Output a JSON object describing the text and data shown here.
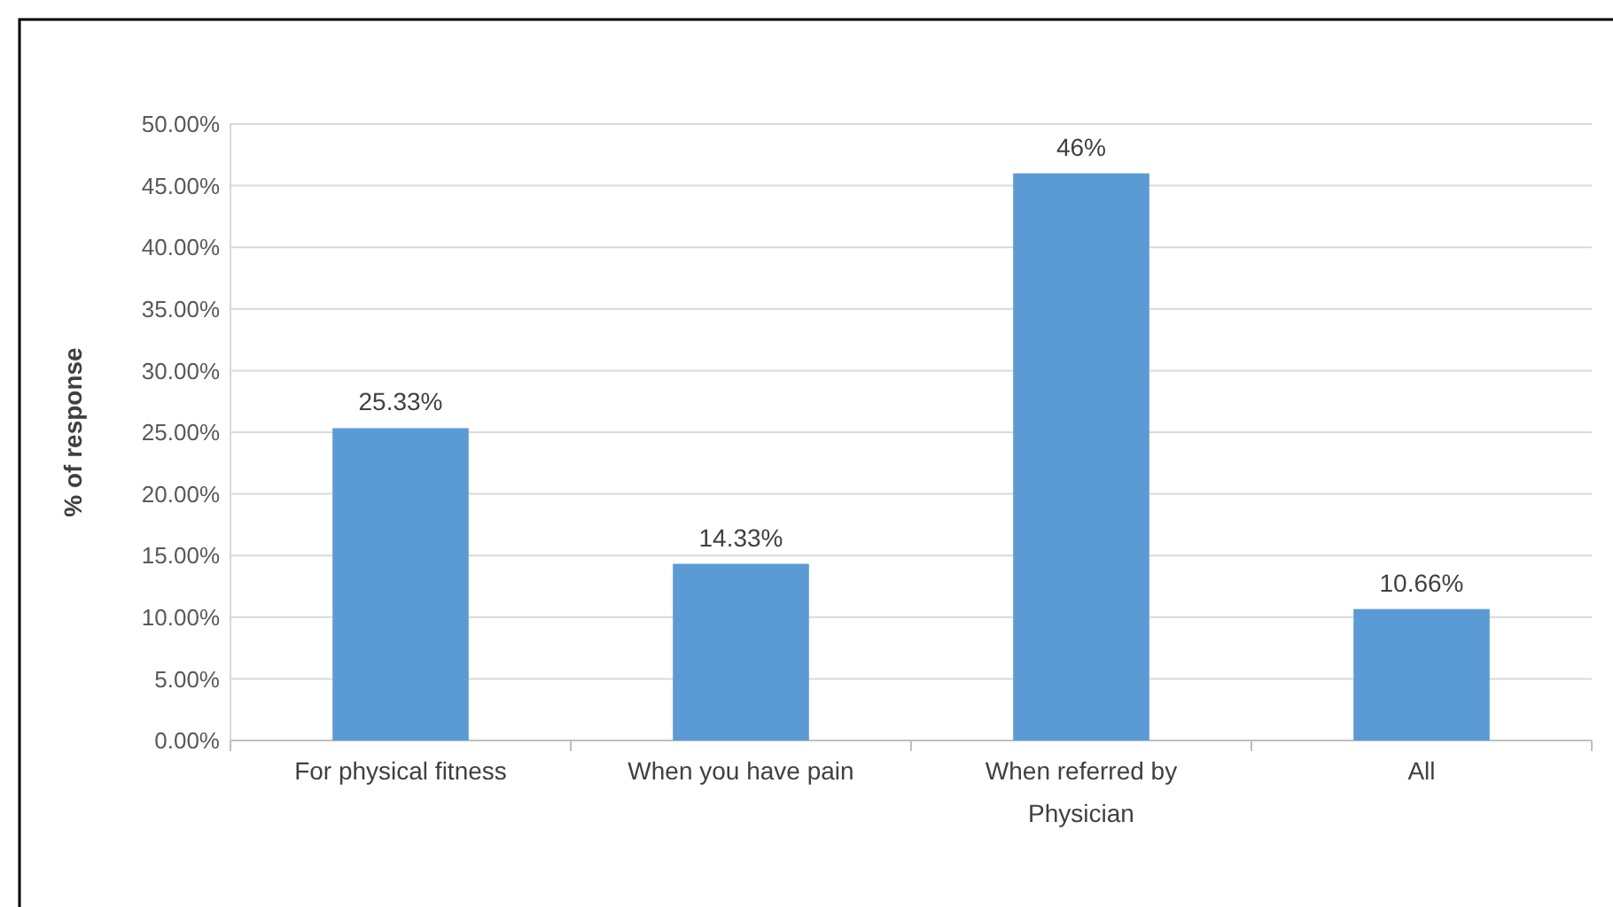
{
  "chart_data": {
    "type": "bar",
    "ylabel": "% of response",
    "categories": [
      "For physical fitness",
      "When you have pain",
      "When referred by Physician",
      "All"
    ],
    "values": [
      25.33,
      14.33,
      46,
      10.66
    ],
    "value_labels": [
      "25.33%",
      "14.33%",
      "46%",
      "10.66%"
    ],
    "color": "#5b9bd5",
    "ylim": [
      0,
      50
    ],
    "yticks": [
      {
        "value": 0,
        "label": "0.00%"
      },
      {
        "value": 5,
        "label": "5.00%"
      },
      {
        "value": 10,
        "label": "10.00%"
      },
      {
        "value": 15,
        "label": "15.00%"
      },
      {
        "value": 20,
        "label": "20.00%"
      },
      {
        "value": 25,
        "label": "25.00%"
      },
      {
        "value": 30,
        "label": "30.00%"
      },
      {
        "value": 35,
        "label": "35.00%"
      },
      {
        "value": 40,
        "label": "40.00%"
      },
      {
        "value": 45,
        "label": "45.00%"
      },
      {
        "value": 50,
        "label": "50.00%"
      }
    ],
    "grid": "y"
  }
}
